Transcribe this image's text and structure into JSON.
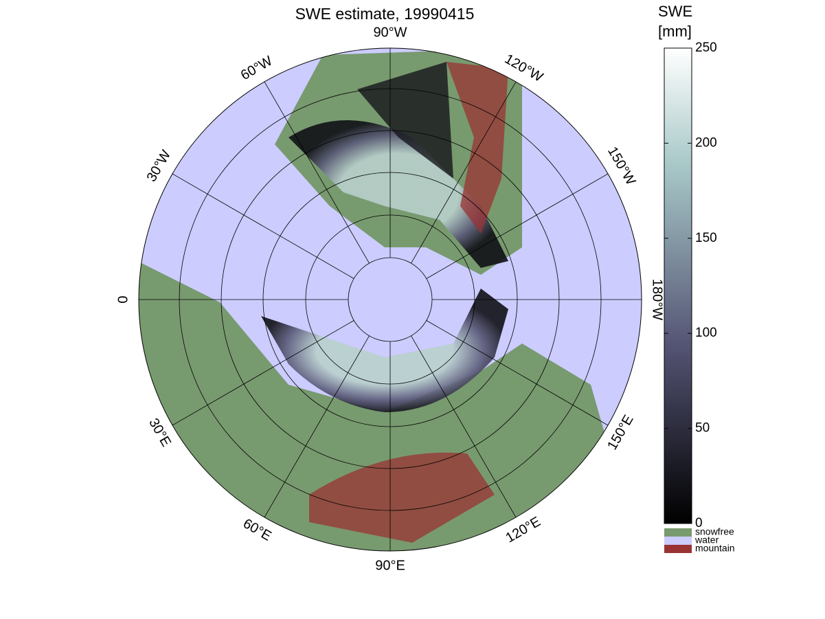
{
  "map": {
    "title": "SWE estimate, 19990415",
    "colorbar": {
      "label_lines": [
        "SWE",
        "[mm]"
      ],
      "clim": [
        0,
        250
      ],
      "ticks": [
        0,
        50,
        100,
        150,
        200,
        250
      ]
    },
    "legend": [
      {
        "label": "snowfree",
        "color": "#789a6f"
      },
      {
        "label": "water",
        "color": "#ccccff"
      },
      {
        "label": "mountain",
        "color": "#993333"
      }
    ],
    "longitude_labels": [
      "90°W",
      "120°W",
      "150°W",
      "180°W",
      "150°E",
      "120°E",
      "90°E",
      "60°E",
      "30°E",
      "0",
      "30°W",
      "60°W"
    ]
  }
}
